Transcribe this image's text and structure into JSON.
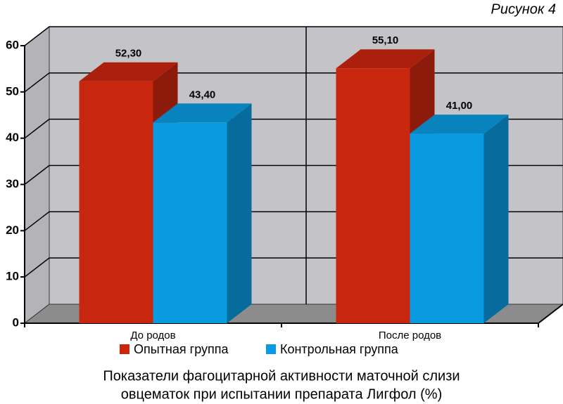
{
  "chart_data": {
    "type": "bar3d",
    "figure_label": "Рисунок 4",
    "caption": [
      "Показатели фагоцитарной активности маточной слизи",
      "овцематок при испытании препарата Лигфол (%)"
    ],
    "categories": [
      "До родов",
      "После родов"
    ],
    "series": [
      {
        "name": "Опытная группа",
        "color": "#c8260f",
        "values": [
          52.3,
          55.1
        ],
        "value_labels": [
          "52,30",
          "55,10"
        ]
      },
      {
        "name": "Контрольная группа",
        "color": "#0a9ae0",
        "values": [
          43.4,
          41.0
        ],
        "value_labels": [
          "43,40",
          "41,00"
        ]
      }
    ],
    "ylim": [
      0,
      60
    ],
    "yticks": [
      0,
      10,
      20,
      30,
      40,
      50,
      60
    ],
    "grid": true,
    "legend": "bottom"
  }
}
